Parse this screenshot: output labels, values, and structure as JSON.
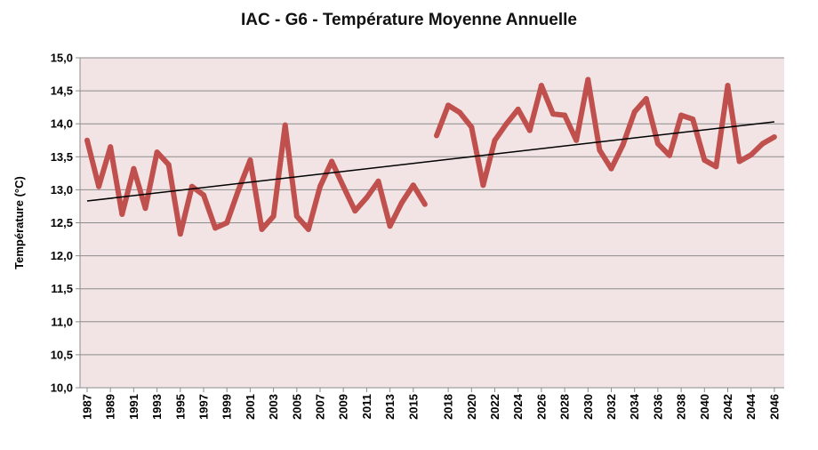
{
  "chart_data": {
    "type": "line",
    "title": "IAC - G6 - Température Moyenne Annuelle",
    "xlabel": "",
    "ylabel": "Température (°C)",
    "ylim": [
      10.0,
      15.0
    ],
    "yticks": [
      "10,0",
      "10,5",
      "11,0",
      "11,5",
      "12,0",
      "12,5",
      "13,0",
      "13,5",
      "14,0",
      "14,5",
      "15,0"
    ],
    "xticks": [
      "1987",
      "1989",
      "1991",
      "1993",
      "1995",
      "1997",
      "1999",
      "2001",
      "2003",
      "2005",
      "2007",
      "2009",
      "2011",
      "2013",
      "2015",
      "2018",
      "2020",
      "2022",
      "2024",
      "2026",
      "2028",
      "2030",
      "2032",
      "2034",
      "2036",
      "2038",
      "2040",
      "2042",
      "2044",
      "2046"
    ],
    "grid": true,
    "plot_background": "#f2e4e4",
    "series_color": "#c0504d",
    "trend_color": "#000000",
    "series": [
      {
        "segments": [
          {
            "x": [
              "1987",
              "1988",
              "1989",
              "1990",
              "1991",
              "1992",
              "1993",
              "1994",
              "1995",
              "1996",
              "1997",
              "1998",
              "1999",
              "2000",
              "2001",
              "2002",
              "2003",
              "2004",
              "2005",
              "2006",
              "2007",
              "2008",
              "2009",
              "2010",
              "2011",
              "2012",
              "2013",
              "2014",
              "2015",
              "2016"
            ],
            "y": [
              13.75,
              13.05,
              13.65,
              12.63,
              13.32,
              12.72,
              13.57,
              13.38,
              12.33,
              13.05,
              12.92,
              12.42,
              12.5,
              13.0,
              13.45,
              12.4,
              12.6,
              13.98,
              12.6,
              12.4,
              13.05,
              13.43,
              13.05,
              12.68,
              12.88,
              13.13,
              12.45,
              12.8,
              13.07,
              12.78
            ]
          },
          {
            "x": [
              "2017",
              "2018",
              "2019",
              "2020",
              "2021",
              "2022",
              "2023",
              "2024",
              "2025",
              "2026",
              "2027",
              "2028",
              "2029",
              "2030",
              "2031",
              "2032",
              "2033",
              "2034",
              "2035",
              "2036",
              "2037",
              "2038",
              "2039",
              "2040",
              "2041",
              "2042",
              "2043",
              "2044",
              "2045",
              "2046"
            ],
            "y": [
              13.82,
              14.28,
              14.17,
              13.95,
              13.07,
              13.75,
              14.0,
              14.22,
              13.9,
              14.58,
              14.15,
              14.13,
              13.75,
              14.67,
              13.6,
              13.32,
              13.68,
              14.18,
              14.38,
              13.7,
              13.52,
              14.13,
              14.07,
              13.45,
              13.35,
              14.58,
              13.43,
              13.53,
              13.7,
              13.8
            ]
          }
        ]
      }
    ],
    "trendline": {
      "x": [
        "1987",
        "2046"
      ],
      "y": [
        12.83,
        14.03
      ]
    }
  }
}
